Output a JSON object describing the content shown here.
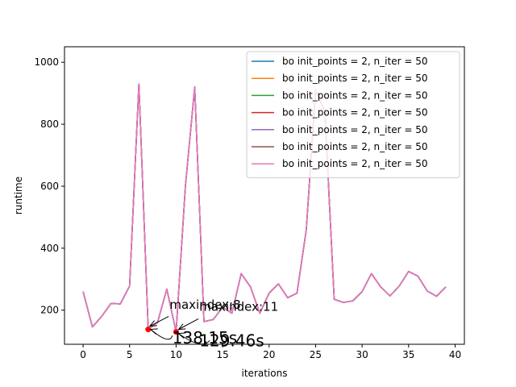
{
  "chart_data": {
    "type": "line",
    "xlabel": "iterations",
    "ylabel": "runtime",
    "xlim": [
      -2,
      41
    ],
    "ylim": [
      90,
      1050
    ],
    "xticks": [
      0,
      5,
      10,
      15,
      20,
      25,
      30,
      35,
      40
    ],
    "yticks": [
      200,
      400,
      600,
      800,
      1000
    ],
    "grid": false,
    "legend_position": "top-right",
    "x": [
      0,
      1,
      2,
      3,
      4,
      5,
      6,
      7,
      8,
      9,
      10,
      11,
      12,
      13,
      14,
      15,
      16,
      17,
      18,
      19,
      20,
      21,
      22,
      23,
      24,
      25,
      26,
      27,
      28,
      29,
      30,
      31,
      32,
      33,
      34,
      35,
      36,
      37,
      38,
      39
    ],
    "series": [
      {
        "name": "bo  init_points = 2, n_iter = 50",
        "color": "#1f77b4",
        "values": [
          260,
          146,
          180,
          222,
          220,
          278,
          930,
          138,
          160,
          268,
          130,
          600,
          920,
          163,
          170,
          210,
          190,
          318,
          275,
          190,
          255,
          285,
          240,
          255,
          460,
          910,
          840,
          235,
          225,
          230,
          260,
          318,
          275,
          246,
          278,
          325,
          310,
          262,
          245,
          275
        ]
      },
      {
        "name": "bo  init_points = 2, n_iter = 50",
        "color": "#ff7f0e",
        "values": [
          260,
          146,
          180,
          222,
          220,
          278,
          930,
          138,
          160,
          268,
          130,
          600,
          920,
          163,
          170,
          210,
          190,
          318,
          275,
          190,
          255,
          285,
          240,
          255,
          460,
          910,
          840,
          235,
          225,
          230,
          260,
          318,
          275,
          246,
          278,
          325,
          310,
          262,
          245,
          275
        ]
      },
      {
        "name": "bo  init_points = 2, n_iter = 50",
        "color": "#2ca02c",
        "values": [
          260,
          146,
          180,
          222,
          220,
          278,
          930,
          138,
          160,
          268,
          130,
          600,
          920,
          163,
          170,
          210,
          190,
          318,
          275,
          190,
          255,
          285,
          240,
          255,
          460,
          910,
          840,
          235,
          225,
          230,
          260,
          318,
          275,
          246,
          278,
          325,
          310,
          262,
          245,
          275
        ]
      },
      {
        "name": "bo  init_points = 2, n_iter = 50",
        "color": "#d62728",
        "values": [
          260,
          146,
          180,
          222,
          220,
          278,
          930,
          138,
          160,
          268,
          130,
          600,
          920,
          163,
          170,
          210,
          190,
          318,
          275,
          190,
          255,
          285,
          240,
          255,
          460,
          910,
          840,
          235,
          225,
          230,
          260,
          318,
          275,
          246,
          278,
          325,
          310,
          262,
          245,
          275
        ]
      },
      {
        "name": "bo  init_points = 2, n_iter = 50",
        "color": "#9467bd",
        "values": [
          260,
          146,
          180,
          222,
          220,
          278,
          930,
          138,
          160,
          268,
          130,
          600,
          920,
          163,
          170,
          210,
          190,
          318,
          275,
          190,
          255,
          285,
          240,
          255,
          460,
          910,
          840,
          235,
          225,
          230,
          260,
          318,
          275,
          246,
          278,
          325,
          310,
          262,
          245,
          275
        ]
      },
      {
        "name": "bo  init_points = 2, n_iter = 50",
        "color": "#8c564b",
        "values": [
          260,
          146,
          180,
          222,
          220,
          278,
          930,
          138,
          160,
          268,
          130,
          600,
          920,
          163,
          170,
          210,
          190,
          318,
          275,
          190,
          255,
          285,
          240,
          255,
          460,
          910,
          840,
          235,
          225,
          230,
          260,
          318,
          275,
          246,
          278,
          325,
          310,
          262,
          245,
          275
        ]
      },
      {
        "name": "bo  init_points = 2, n_iter = 50",
        "color": "#e377c2",
        "values": [
          260,
          146,
          180,
          222,
          220,
          278,
          930,
          138,
          160,
          268,
          130,
          600,
          920,
          163,
          170,
          210,
          190,
          318,
          275,
          190,
          255,
          285,
          240,
          255,
          460,
          910,
          840,
          235,
          225,
          230,
          260,
          318,
          275,
          246,
          278,
          325,
          310,
          262,
          245,
          275
        ]
      }
    ],
    "markers": [
      {
        "x": 7,
        "y": 138,
        "color": "#ff0000"
      },
      {
        "x": 10,
        "y": 130,
        "color": "#ff0000"
      }
    ],
    "annotations": [
      {
        "text": "maxindex:8",
        "x": 9.3,
        "y": 205,
        "size": "small"
      },
      {
        "text": "maxindex:11",
        "x": 12.5,
        "y": 198,
        "size": "small"
      },
      {
        "text": "138.15s",
        "x": 9.6,
        "y": 92,
        "size": "big"
      },
      {
        "text": "129.46s",
        "x": 12.5,
        "y": 84,
        "size": "big"
      }
    ]
  }
}
